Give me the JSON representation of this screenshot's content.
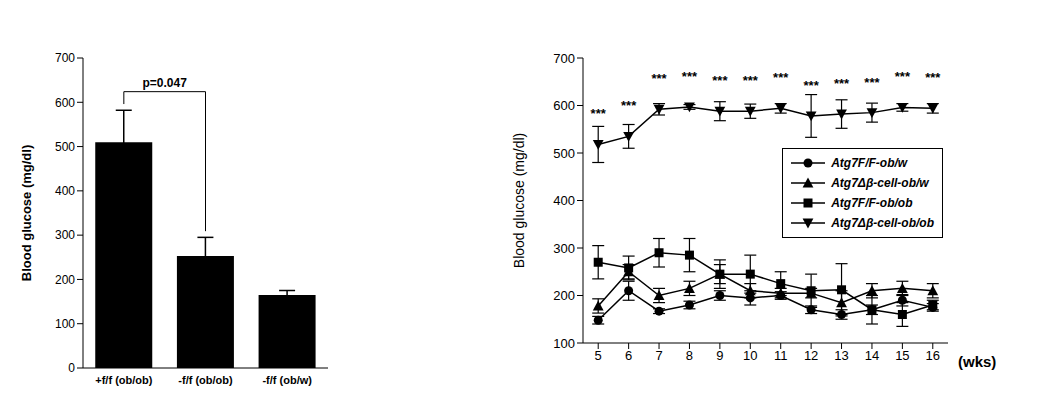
{
  "chart_data": [
    {
      "type": "bar",
      "categories": [
        "+f/f (ob/ob)",
        "-f/f (ob/ob)",
        "-f/f (ob/w)"
      ],
      "values": [
        510,
        253,
        165
      ],
      "errors": [
        72,
        42,
        10
      ],
      "color": "#000000",
      "ylim": [
        0,
        700
      ],
      "yticks": [
        0,
        100,
        200,
        300,
        400,
        500,
        600,
        700
      ],
      "ylabel": "Blood glucose (mg/dl)",
      "annotation": "p=0.047"
    },
    {
      "type": "line",
      "x": [
        5,
        6,
        7,
        8,
        9,
        10,
        11,
        12,
        13,
        14,
        15,
        16
      ],
      "xlim": [
        4.5,
        16.5
      ],
      "xticks": [
        5,
        6,
        7,
        8,
        9,
        10,
        11,
        12,
        13,
        14,
        15,
        16
      ],
      "ylim": [
        100,
        700
      ],
      "yticks": [
        100,
        200,
        300,
        400,
        500,
        600,
        700
      ],
      "xlabel": "(wks)",
      "ylabel": "Blood glucose (mg/dl)",
      "legend": "right",
      "significance": [
        "***",
        "***",
        "***",
        "***",
        "***",
        "***",
        "***",
        "***",
        "***",
        "***",
        "***",
        "***"
      ],
      "series": [
        {
          "name": "Atg7F/F-ob/w",
          "color": "#000000",
          "marker": "circle",
          "values": [
            148,
            210,
            167,
            180,
            200,
            195,
            200,
            170,
            160,
            170,
            190,
            175
          ],
          "errors": [
            8,
            20,
            5,
            8,
            10,
            15,
            8,
            8,
            10,
            10,
            12,
            8
          ]
        },
        {
          "name": "Atg7Δβ-cell-ob/w",
          "color": "#000000",
          "marker": "triangle",
          "values": [
            178,
            250,
            200,
            215,
            245,
            210,
            205,
            205,
            185,
            210,
            215,
            210
          ],
          "errors": [
            15,
            15,
            15,
            15,
            30,
            15,
            10,
            10,
            25,
            15,
            15,
            15
          ]
        },
        {
          "name": "Atg7F/F-ob/ob",
          "color": "#000000",
          "marker": "square",
          "values": [
            270,
            258,
            290,
            285,
            245,
            245,
            225,
            210,
            212,
            170,
            160,
            180
          ],
          "errors": [
            35,
            25,
            30,
            35,
            20,
            40,
            25,
            35,
            55,
            30,
            25,
            10
          ]
        },
        {
          "name": "Atg7Δβ-cell-ob/ob",
          "color": "#000000",
          "marker": "triangle-down",
          "values": [
            518,
            535,
            592,
            597,
            588,
            588,
            594,
            578,
            582,
            585,
            596,
            594
          ],
          "errors": [
            38,
            25,
            12,
            5,
            20,
            15,
            10,
            45,
            30,
            20,
            8,
            10
          ]
        }
      ]
    }
  ]
}
